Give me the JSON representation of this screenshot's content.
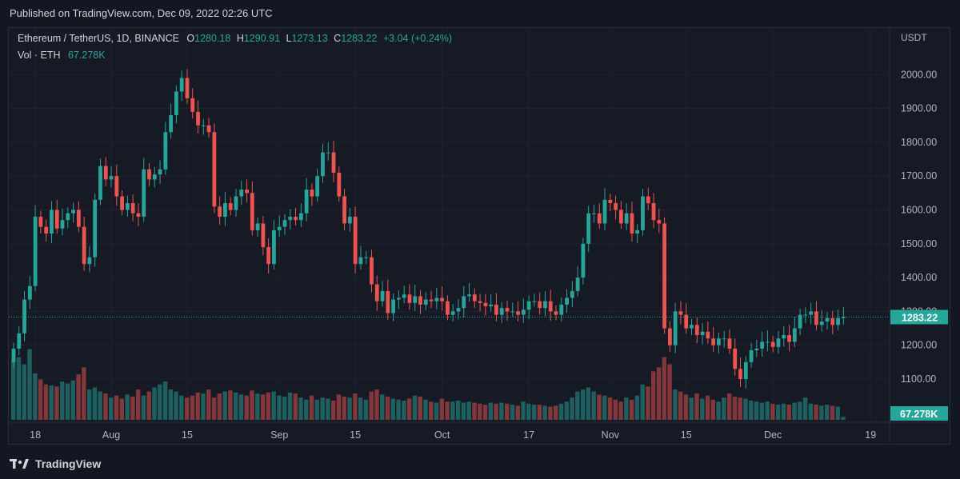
{
  "header": {
    "published": "Published on TradingView.com, Dec 09, 2022 02:26 UTC"
  },
  "legend": {
    "symbol": "Ethereum / TetherUS, 1D, BINANCE",
    "open_label": "O",
    "open": "1280.18",
    "high_label": "H",
    "high": "1290.91",
    "low_label": "L",
    "low": "1273.13",
    "close_label": "C",
    "close": "1283.22",
    "change": "+3.04 (+0.24%)",
    "vol_label": "Vol · ETH",
    "vol_value": "67.278K"
  },
  "footer": {
    "brand": "TradingView"
  },
  "chart_data": {
    "type": "candlestick",
    "axis_currency": "USDT",
    "y_ticks": [
      1100,
      1200,
      1300,
      1400,
      1500,
      1600,
      1700,
      1800,
      1900,
      2000
    ],
    "y_tick_labels": [
      "1100.00",
      "1200.00",
      "1300.00",
      "1400.00",
      "1500.00",
      "1600.00",
      "1700.00",
      "1800.00",
      "1900.00",
      "2000.00"
    ],
    "ylim": [
      1030,
      2130
    ],
    "x_ticks": [
      "18",
      "Aug",
      "15",
      "Sep",
      "15",
      "Oct",
      "17",
      "Nov",
      "15",
      "Dec",
      "19"
    ],
    "x_tick_dates": [
      "2022-07-18",
      "2022-08-01",
      "2022-08-15",
      "2022-09-01",
      "2022-09-15",
      "2022-10-01",
      "2022-10-17",
      "2022-11-01",
      "2022-11-15",
      "2022-12-01",
      "2022-12-19"
    ],
    "first_date": "2022-07-14",
    "last_price": 1283.22,
    "last_price_label": "1283.22",
    "last_volume_label": "67.278K",
    "up_color": "#26a69a",
    "down_color": "#ef5350",
    "closes": [
      1190,
      1235,
      1335,
      1375,
      1580,
      1550,
      1530,
      1600,
      1545,
      1570,
      1590,
      1600,
      1550,
      1440,
      1460,
      1630,
      1730,
      1690,
      1700,
      1640,
      1600,
      1620,
      1590,
      1580,
      1720,
      1690,
      1705,
      1720,
      1830,
      1880,
      1950,
      1990,
      1930,
      1890,
      1850,
      1850,
      1830,
      1610,
      1580,
      1620,
      1600,
      1640,
      1660,
      1650,
      1540,
      1560,
      1490,
      1440,
      1540,
      1550,
      1570,
      1580,
      1570,
      1590,
      1660,
      1640,
      1700,
      1770,
      1770,
      1710,
      1640,
      1560,
      1580,
      1440,
      1460,
      1460,
      1380,
      1330,
      1360,
      1295,
      1335,
      1340,
      1350,
      1325,
      1345,
      1320,
      1335,
      1330,
      1340,
      1330,
      1290,
      1300,
      1310,
      1345,
      1350,
      1330,
      1325,
      1315,
      1320,
      1290,
      1310,
      1300,
      1300,
      1290,
      1305,
      1330,
      1330,
      1310,
      1330,
      1300,
      1290,
      1320,
      1340,
      1360,
      1400,
      1500,
      1590,
      1590,
      1560,
      1630,
      1620,
      1600,
      1560,
      1590,
      1530,
      1540,
      1640,
      1620,
      1570,
      1560,
      1250,
      1200,
      1300,
      1290,
      1250,
      1260,
      1230,
      1240,
      1220,
      1200,
      1220,
      1220,
      1190,
      1130,
      1100,
      1150,
      1185,
      1190,
      1210,
      1210,
      1195,
      1220,
      1230,
      1210,
      1250,
      1290,
      1290,
      1300,
      1260,
      1270,
      1280,
      1260,
      1280,
      1283.22
    ],
    "volumes": [
      0.58,
      0.62,
      0.55,
      0.7,
      0.46,
      0.4,
      0.35,
      0.34,
      0.33,
      0.38,
      0.36,
      0.39,
      0.45,
      0.52,
      0.3,
      0.32,
      0.28,
      0.26,
      0.22,
      0.24,
      0.21,
      0.25,
      0.23,
      0.3,
      0.24,
      0.28,
      0.32,
      0.35,
      0.38,
      0.3,
      0.28,
      0.24,
      0.22,
      0.24,
      0.27,
      0.26,
      0.3,
      0.22,
      0.26,
      0.28,
      0.29,
      0.27,
      0.25,
      0.24,
      0.29,
      0.26,
      0.25,
      0.27,
      0.28,
      0.24,
      0.23,
      0.27,
      0.26,
      0.22,
      0.2,
      0.24,
      0.2,
      0.22,
      0.21,
      0.19,
      0.25,
      0.23,
      0.22,
      0.26,
      0.22,
      0.2,
      0.28,
      0.3,
      0.25,
      0.23,
      0.21,
      0.2,
      0.19,
      0.21,
      0.24,
      0.23,
      0.2,
      0.18,
      0.17,
      0.21,
      0.18,
      0.18,
      0.19,
      0.17,
      0.18,
      0.17,
      0.16,
      0.15,
      0.17,
      0.16,
      0.17,
      0.16,
      0.15,
      0.14,
      0.18,
      0.16,
      0.15,
      0.15,
      0.14,
      0.13,
      0.14,
      0.16,
      0.18,
      0.22,
      0.28,
      0.3,
      0.32,
      0.28,
      0.25,
      0.24,
      0.22,
      0.2,
      0.18,
      0.22,
      0.2,
      0.24,
      0.35,
      0.33,
      0.48,
      0.52,
      0.62,
      0.55,
      0.3,
      0.28,
      0.25,
      0.22,
      0.26,
      0.21,
      0.24,
      0.2,
      0.18,
      0.22,
      0.26,
      0.23,
      0.22,
      0.21,
      0.19,
      0.18,
      0.17,
      0.18,
      0.16,
      0.15,
      0.16,
      0.15,
      0.17,
      0.18,
      0.22,
      0.16,
      0.15,
      0.14,
      0.15,
      0.14,
      0.13,
      0.03
    ]
  }
}
